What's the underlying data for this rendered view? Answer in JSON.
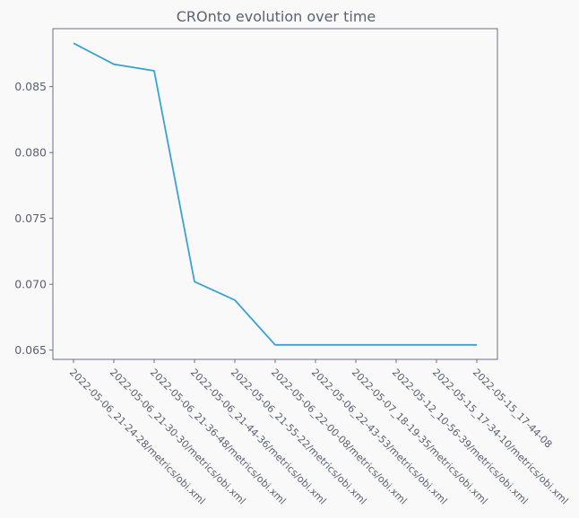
{
  "chart_data": {
    "type": "line",
    "title": "CROnto evolution over time",
    "xlabel": "",
    "ylabel": "",
    "categories": [
      "2022-05-06_21-24-28/metrics/obi.xml",
      "2022-05-06_21-30-30/metrics/obi.xml",
      "2022-05-06_21-36-48/metrics/obi.xml",
      "2022-05-06_21-44-36/metrics/obi.xml",
      "2022-05-06_21-55-22/metrics/obi.xml",
      "2022-05-06_22-00-08/metrics/obi.xml",
      "2022-05-06_22-43-53/metrics/obi.xml",
      "2022-05-07_18-19-35/metrics/obi.xml",
      "2022-05-12_10-56-39/metrics/obi.xml",
      "2022-05-15_17-34-10/metrics/obi.xml",
      "2022-05-15_17-44-08"
    ],
    "values": [
      0.0883,
      0.0867,
      0.0862,
      0.0702,
      0.0688,
      0.0654,
      0.0654,
      0.0654,
      0.0654,
      0.0654,
      0.0654
    ],
    "yticks": [
      "0.065",
      "0.070",
      "0.075",
      "0.080",
      "0.085"
    ],
    "ylim": [
      0.0643,
      0.0894
    ],
    "grid": false,
    "color": "#3aa3d1"
  }
}
